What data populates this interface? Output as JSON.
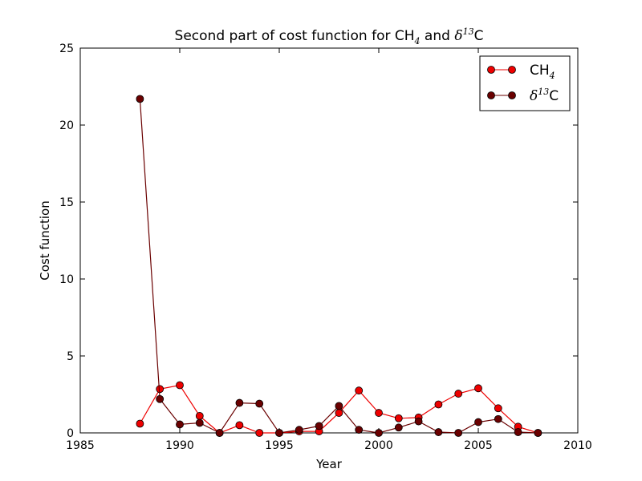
{
  "chart_data": {
    "type": "line",
    "title": {
      "prefix": "Second part of cost function for CH",
      "sub": "4",
      "middle": " and ",
      "greek": "δ",
      "sup": "13",
      "suffix": "C"
    },
    "xlabel": "Year",
    "ylabel": "Cost function",
    "xlim": [
      1985,
      2010
    ],
    "ylim": [
      0,
      25
    ],
    "xticks": [
      "1985",
      "1990",
      "1995",
      "2000",
      "2005",
      "2010"
    ],
    "yticks": [
      "0",
      "5",
      "10",
      "15",
      "20",
      "25"
    ],
    "legend_position": "top-right",
    "grid": false,
    "series": [
      {
        "key": "ch4",
        "legend": {
          "base": "CH",
          "sub": "4"
        },
        "color": "#ee0000",
        "x": [
          1988,
          1989,
          1990,
          1991,
          1992,
          1993,
          1994,
          1995,
          1996,
          1997,
          1998,
          1999,
          2000,
          2001,
          2002,
          2003,
          2004,
          2005,
          2006,
          2007,
          2008
        ],
        "values": [
          0.6,
          2.85,
          3.1,
          1.1,
          0.0,
          0.5,
          0.0,
          0.0,
          0.1,
          0.1,
          1.3,
          2.75,
          1.3,
          0.95,
          1.0,
          1.85,
          2.55,
          2.9,
          1.6,
          0.4,
          0.0
        ]
      },
      {
        "key": "d13c",
        "legend": {
          "greek": "δ",
          "sup": "13",
          "base": "C"
        },
        "color": "#6a0000",
        "x": [
          1988,
          1989,
          1990,
          1991,
          1992,
          1993,
          1994,
          1995,
          1996,
          1997,
          1998,
          1999,
          2000,
          2001,
          2002,
          2003,
          2004,
          2005,
          2006,
          2007,
          2008
        ],
        "values": [
          21.7,
          2.2,
          0.55,
          0.65,
          0.0,
          1.95,
          1.9,
          0.0,
          0.2,
          0.45,
          1.75,
          0.2,
          0.0,
          0.35,
          0.75,
          0.05,
          0.0,
          0.7,
          0.9,
          0.05,
          0.0
        ]
      }
    ]
  }
}
